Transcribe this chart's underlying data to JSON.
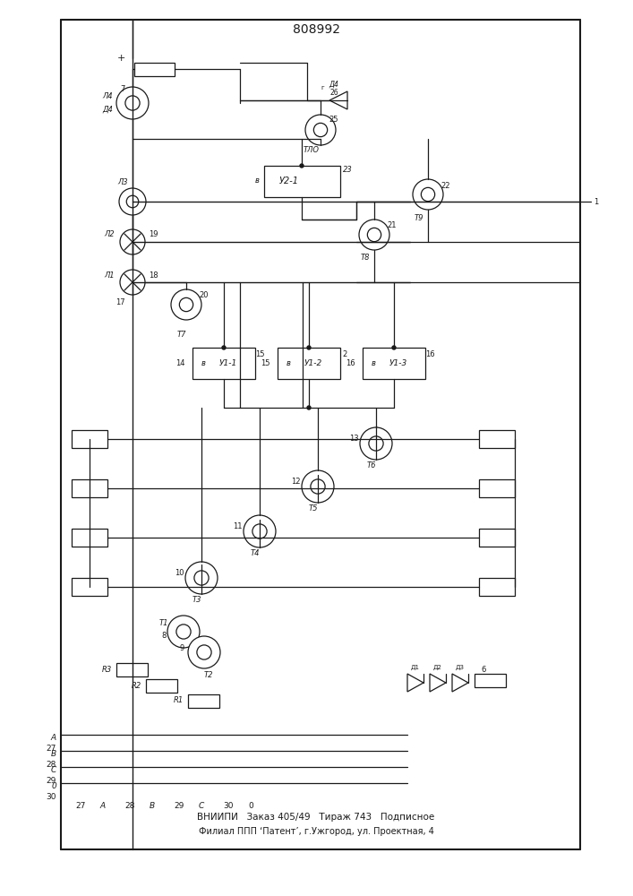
{
  "title": "808992",
  "footer_line1": "ВНИИПИ   Заказ 405/49   Тираж 743   Подписное",
  "footer_line2": "Филиал ППП ‘Патент’, г.Ужгород, ул. Проектная, 4",
  "bg_color": "#ffffff",
  "lc": "#1a1a1a",
  "fig_width": 7.07,
  "fig_height": 10.0,
  "dpi": 100
}
